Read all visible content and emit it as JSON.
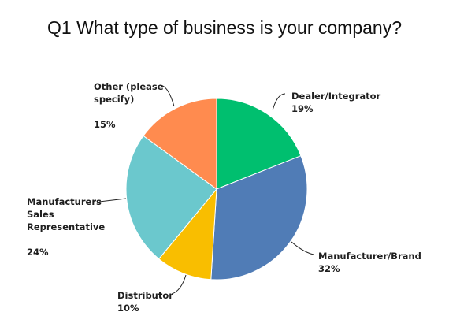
{
  "chart_data": {
    "type": "pie",
    "title": "Q1 What type of business is your company?",
    "slices": [
      {
        "label_lines": [
          "Dealer/Integrator"
        ],
        "percent_label": "19%",
        "value": 19,
        "color": "#00bf6f"
      },
      {
        "label_lines": [
          "Manufacturer/Brand"
        ],
        "percent_label": "32%",
        "value": 32,
        "color": "#507cb6"
      },
      {
        "label_lines": [
          "Distributor"
        ],
        "percent_label": "10%",
        "value": 10,
        "color": "#f9be00"
      },
      {
        "label_lines": [
          "Manufacturers",
          "Sales",
          "Representative"
        ],
        "percent_label": "24%",
        "value": 24,
        "color": "#6bc8cd"
      },
      {
        "label_lines": [
          "Other (please",
          "specify)"
        ],
        "percent_label": "15%",
        "value": 15,
        "color": "#ff8b4f"
      }
    ]
  }
}
